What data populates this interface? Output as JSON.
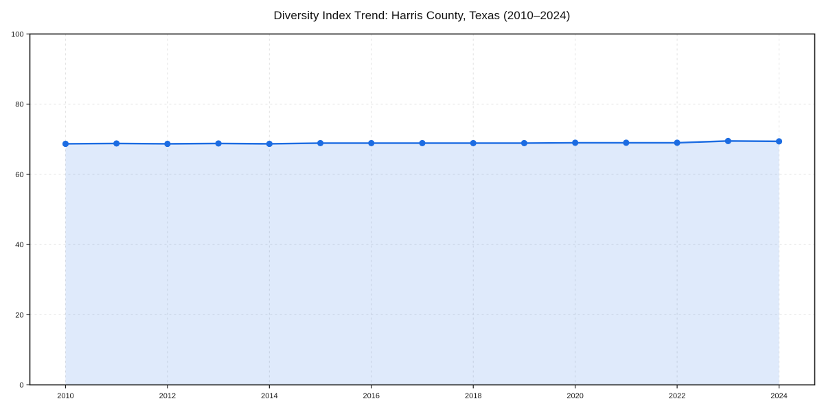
{
  "chart_data": {
    "type": "area",
    "title": "Diversity Index Trend: Harris County, Texas (2010–2024)",
    "x": [
      2010,
      2011,
      2012,
      2013,
      2014,
      2015,
      2016,
      2017,
      2018,
      2019,
      2020,
      2021,
      2022,
      2023,
      2024
    ],
    "values": [
      68.7,
      68.8,
      68.7,
      68.8,
      68.7,
      68.9,
      68.9,
      68.9,
      68.9,
      68.9,
      69.0,
      69.0,
      69.0,
      69.5,
      69.4
    ],
    "xlabel": "",
    "ylabel": "",
    "xlim": [
      2009.3,
      2024.7
    ],
    "ylim": [
      0,
      100
    ],
    "x_ticks": [
      2010,
      2012,
      2014,
      2016,
      2018,
      2020,
      2022,
      2024
    ],
    "y_ticks": [
      0,
      20,
      40,
      60,
      80,
      100
    ],
    "grid": true,
    "legend_visible": false,
    "marker": "circle",
    "colors": {
      "line": "#1c6ce2",
      "marker": "#1c6ce2",
      "fill": "rgba(28,108,226,0.14)",
      "grid": "#e1e1e1",
      "spine": "#1a1a1a",
      "tick_text": "#1a1a1a",
      "title_text": "#111111",
      "background": "#ffffff"
    }
  }
}
